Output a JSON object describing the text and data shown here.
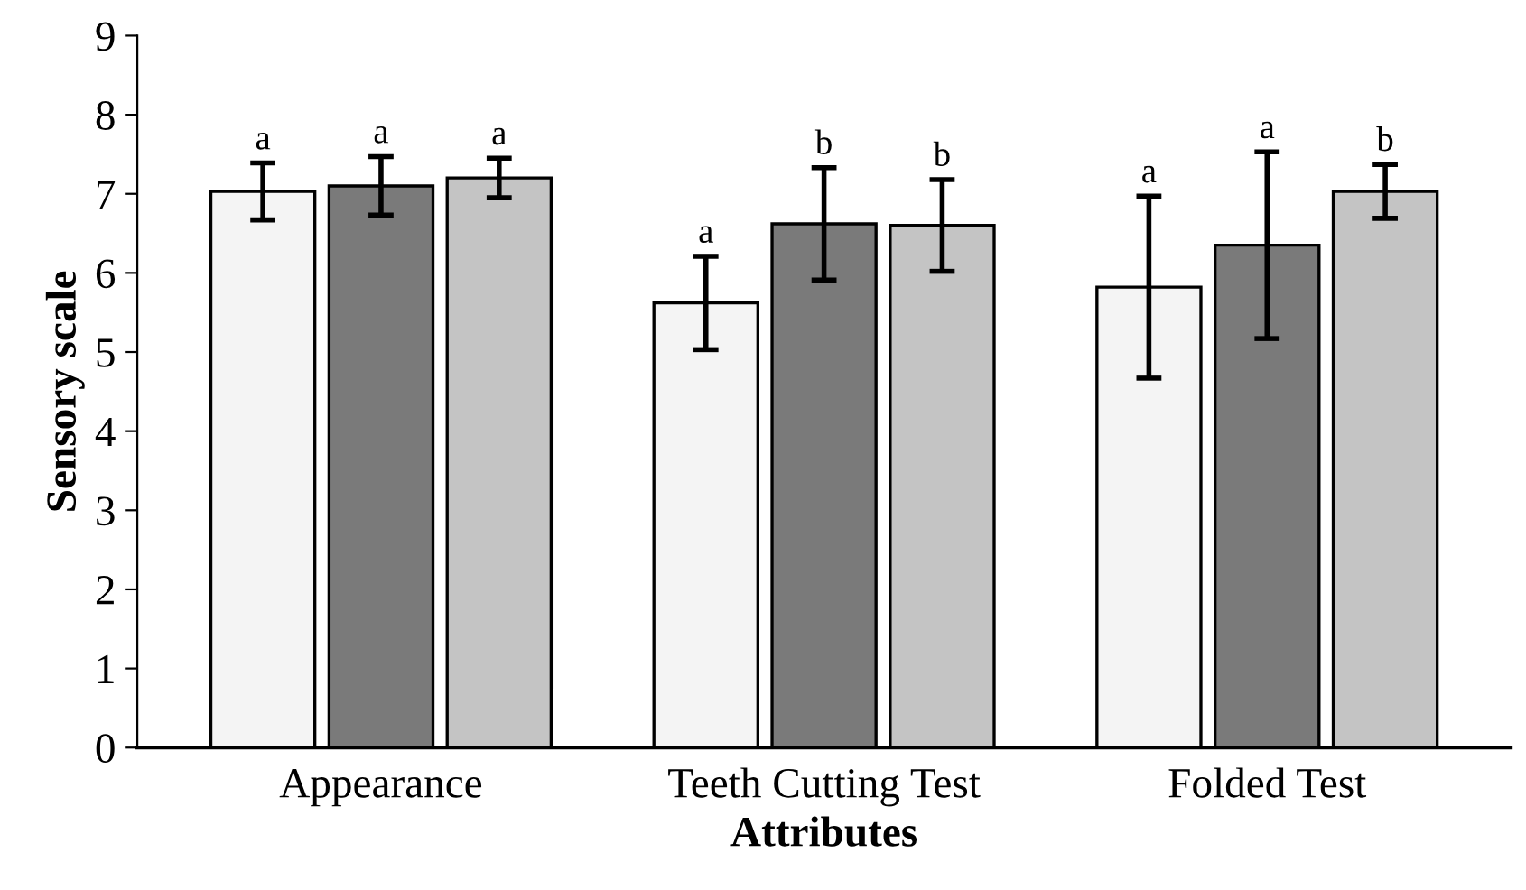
{
  "chart_data": {
    "type": "bar",
    "xlabel": "Attributes",
    "ylabel": "Sensory scale",
    "categories": [
      "Appearance",
      "Teeth Cutting Test",
      "Folded Test"
    ],
    "series": [
      {
        "color": "#f4f4f4",
        "values": [
          7.03,
          5.62,
          5.82
        ],
        "errors": [
          0.36,
          0.59,
          1.15
        ],
        "value_labels": [
          "a",
          "a",
          "a"
        ]
      },
      {
        "color": "#7a7a7a",
        "values": [
          7.1,
          6.62,
          6.35
        ],
        "errors": [
          0.37,
          0.71,
          1.18
        ],
        "value_labels": [
          "a",
          "b",
          "a"
        ]
      },
      {
        "color": "#c4c4c4",
        "values": [
          7.2,
          6.6,
          7.03
        ],
        "errors": [
          0.25,
          0.58,
          0.34
        ],
        "value_labels": [
          "a",
          "b",
          "b"
        ]
      }
    ],
    "ylim": [
      0,
      9
    ],
    "yticks": [
      0,
      1,
      2,
      3,
      4,
      5,
      6,
      7,
      8,
      9
    ],
    "grid": false,
    "legend": false
  }
}
